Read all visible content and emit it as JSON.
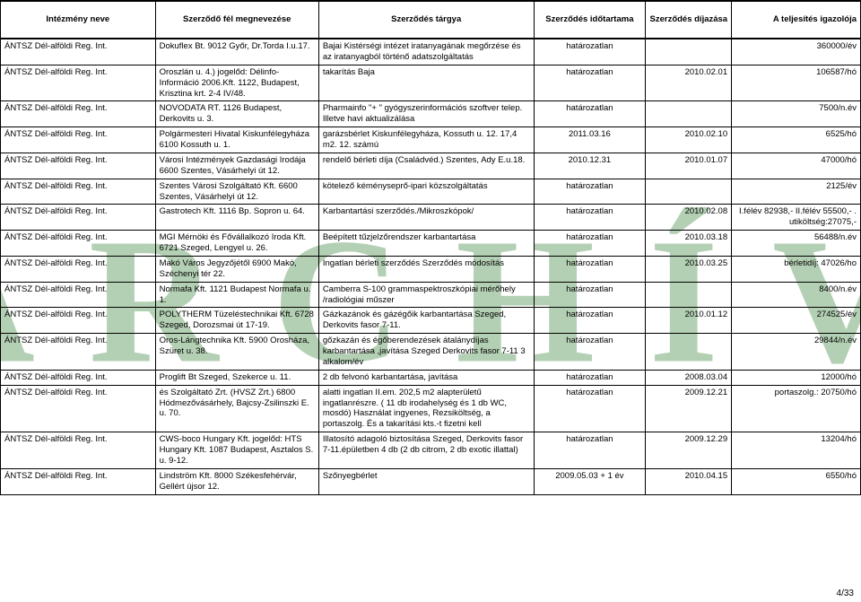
{
  "watermark": "ARCHÍV",
  "pagenum": "4/33",
  "headers": {
    "c1": "Intézmény neve",
    "c2": "Szerződő fél megnevezése",
    "c3": "Szerződés tárgya",
    "c4": "Szerződés időtartama",
    "c5": "Szerződés díjazása",
    "c6": "A teljesítés igazolója"
  },
  "rows": [
    {
      "c1": "ÁNTSZ Dél-alföldi Reg. Int.",
      "c2": "Dokuflex Bt. 9012 Győr, Dr.Torda I.u.17.",
      "c3": "Bajai Kistérségi intézet iratanyagának megőrzése és az iratanyagból történő adatszolgáltatás",
      "c4": "határozatlan",
      "c5": "",
      "c6": "360000/év"
    },
    {
      "c1": "ÁNTSZ Dél-alföldi Reg. Int.",
      "c2": "Oroszlán u. 4.) jogelőd: Délinfo-Információ 2006.Kft. 1122, Budapest, Krisztina krt. 2-4 IV/48.",
      "c3": "takarítás Baja",
      "c4": "határozatlan",
      "c5": "2010.02.01",
      "c6": "106587/hó"
    },
    {
      "c1": "ÁNTSZ Dél-alföldi Reg. Int.",
      "c2": "NOVODATA RT. 1126 Budapest, Derkovits u. 3.",
      "c3": "Pharmainfo \"+ \" gyógyszerinformációs szoftver telep. Illetve havi aktualizálása",
      "c4": "határozatlan",
      "c5": "",
      "c6": "7500/n.év"
    },
    {
      "c1": "ÁNTSZ Dél-alföldi Reg. Int.",
      "c2": "Polgármesteri Hivatal Kiskunfélegyháza 6100 Kossuth u. 1.",
      "c3": "garázsbérlet Kiskunfélegyháza, Kossuth u. 12. 17,4 m2. 12. számú",
      "c4": "2011.03.16",
      "c5": "2010.02.10",
      "c6": "6525/hó"
    },
    {
      "c1": "ÁNTSZ Dél-alföldi Reg. Int.",
      "c2": "Városi Intézmények Gazdasági Irodája 6600 Szentes, Vásárhelyi út 12.",
      "c3": "rendelő bérleti díja (Családvéd.) Szentes, Ady E.u.18.",
      "c4": "2010.12.31",
      "c5": "2010.01.07",
      "c6": "47000/hó"
    },
    {
      "c1": "ÁNTSZ Dél-alföldi Reg. Int.",
      "c2": "Szentes Városi Szolgáltató Kft. 6600 Szentes, Vásárhelyi út 12.",
      "c3": "kötelező kéményseprő-ipari közszolgáltatás",
      "c4": "határozatlan",
      "c5": "",
      "c6": "2125/év"
    },
    {
      "c1": "ÁNTSZ Dél-alföldi Reg. Int.",
      "c2": "Gastrotech Kft. 1116 Bp. Sopron u. 64.",
      "c3": "Karbantartási szerződés./Mikroszkópok/",
      "c4": "határozatlan",
      "c5": "2010.02.08",
      "c6": "I.félév 82938,- II.félév 55500,- . utiköltség:27075,-"
    },
    {
      "c1": "ÁNTSZ Dél-alföldi Reg. Int.",
      "c2": "MGI Mérnöki és Fővállalkozó Iroda Kft. 6721 Szeged, Lengyel u. 26.",
      "c3": "Beépített tűzjelzőrendszer karbantartása",
      "c4": "határozatlan",
      "c5": "2010.03.18",
      "c6": "56488/n.év"
    },
    {
      "c1": "ÁNTSZ Dél-alföldi Reg. Int.",
      "c2": "Makó Város Jegyzőjétől 6900 Makó, Széchenyi tér 22.",
      "c3": "Ingatlan bérleti szerződés Szerződés módosítás",
      "c4": "határozatlan",
      "c5": "2010.03.25",
      "c6": "bérletidíj: 47026/ho"
    },
    {
      "c1": "ÁNTSZ Dél-alföldi Reg. Int.",
      "c2": "Normafa Kft. 1121 Budapest Normafa u. 1.",
      "c3": "Camberra S-100 grammaspektroszkópiai mérőhely /radiológiai műszer",
      "c4": "határozatlan",
      "c5": "",
      "c6": "8400/n.év"
    },
    {
      "c1": "ÁNTSZ Dél-alföldi Reg. Int.",
      "c2": "POLYTHERM Tüzeléstechnikai Kft. 6728 Szeged, Dorozsmai út 17-19.",
      "c3": "Gázkazánok és gázégőik karbantartása Szeged, Derkovits fasor 7-11.",
      "c4": "határozatlan",
      "c5": "2010.01.12",
      "c6": "274525/év"
    },
    {
      "c1": "ÁNTSZ Dél-alföldi Reg. Int.",
      "c2": "Oros-Lángtechnika Kft. 5900 Orosháza, Szüret u. 38.",
      "c3": "gőzkazán és égőberendezések átalánydíjas karbantartása ,javítása Szeged Derkovits fasor 7-11 3 alkalom/év",
      "c4": "határozatlan",
      "c5": "",
      "c6": "29844/n.év"
    },
    {
      "c1": "ÁNTSZ Dél-alföldi Reg. Int.",
      "c2": "Proglift Bt Szeged, Szekerce u. 11.",
      "c3": "2 db felvonó karbantartása, javítása",
      "c4": "határozatlan",
      "c5": "2008.03.04",
      "c6": "12000/hó"
    },
    {
      "c1": "ÁNTSZ Dél-alföldi Reg. Int.",
      "c2": "és Szolgáltató Zrt. (HVSZ Zrt.) 6800 Hódmezővásárhely, Bajcsy-Zsilinszki E. u. 70.",
      "c3": "alatti ingatlan II.em. 202,5 m2 alapterületű ingatlanrészre. ( 11 db irodahelység és 1 db WC, mosdó) Használat ingyenes, Rezsiköltség, a portaszolg. És a takarítási kts.-t fizetni kell",
      "c4": "határozatlan",
      "c5": "2009.12.21",
      "c6": "portaszolg.: 20750/hó"
    },
    {
      "c1": "ÁNTSZ Dél-alföldi Reg. Int.",
      "c2": "CWS-boco Hungary Kft. jogelőd: HTS Hungary Kft. 1087 Budapest, Asztalos S. u. 9-12.",
      "c3": "Illatosító adagoló biztosítása Szeged, Derkovits fasor 7-11.épületben 4 db (2 db citrom, 2 db exotic illattal)",
      "c4": "határozatlan",
      "c5": "2009.12.29",
      "c6": "13204/hó"
    },
    {
      "c1": "ÁNTSZ Dél-alföldi Reg. Int.",
      "c2": "Lindström Kft. 8000 Székesfehérvár, Gellért újsor 12.",
      "c3": "Szőnyegbérlet",
      "c4": "2009.05.03 + 1 év",
      "c5": "2010.04.15",
      "c6": "6550/hó"
    }
  ]
}
